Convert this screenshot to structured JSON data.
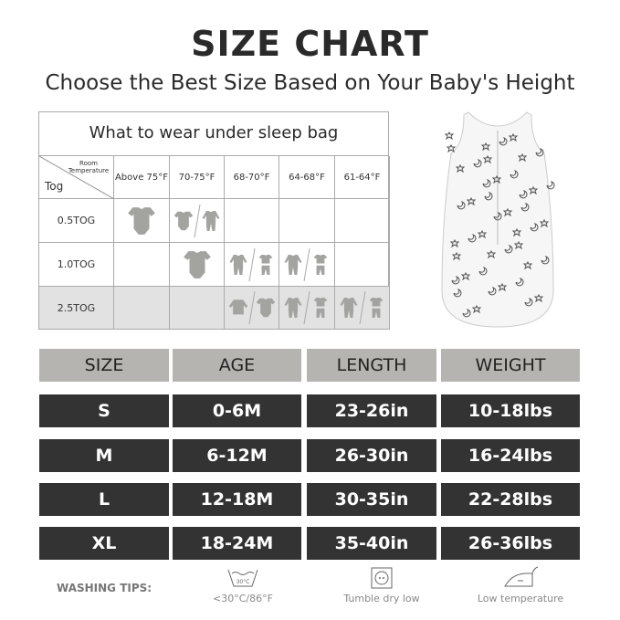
{
  "title": "SIZE CHART",
  "subtitle": "Choose the Best Size Based on Your Baby's Height",
  "tog_table": {
    "heading": "What to wear under sleep bag",
    "corner_top": "Room Temperature",
    "corner_bottom": "Tog",
    "temperatures": [
      "Above 75°F",
      "70-75°F",
      "68-70°F",
      "64-68°F",
      "61-64°F"
    ],
    "rows": [
      {
        "label": "0.5TOG",
        "cells": [
          [
            "onesie"
          ],
          [
            "onesie",
            "sleepsuit"
          ],
          [],
          [],
          []
        ]
      },
      {
        "label": "1.0TOG",
        "cells": [
          [],
          [
            "onesie"
          ],
          [
            "sleepsuit",
            "onesie-pants"
          ],
          [
            "sleepsuit",
            "onesie-pants"
          ],
          []
        ]
      },
      {
        "label": "2.5TOG",
        "cells": [
          [],
          [],
          [
            "jacket",
            "onesie"
          ],
          [
            "sleepsuit",
            "onesie-pants"
          ],
          [
            "sleepsuit",
            "onesie-pants"
          ]
        ]
      }
    ]
  },
  "size_table": {
    "headers": [
      "SIZE",
      "AGE",
      "LENGTH",
      "WEIGHT"
    ],
    "rows": [
      [
        "S",
        "0-6M",
        "23-26in",
        "10-18lbs"
      ],
      [
        "M",
        "6-12M",
        "26-30in",
        "16-24lbs"
      ],
      [
        "L",
        "12-18M",
        "30-35in",
        "22-28lbs"
      ],
      [
        "XL",
        "18-24M",
        "35-40in",
        "26-36lbs"
      ]
    ]
  },
  "washing": {
    "label": "WASHING TIPS:",
    "tips": [
      {
        "icon": "wash-30-icon",
        "symbol_text": "30°C",
        "text": "<30°C/86°F"
      },
      {
        "icon": "tumble-dry-icon",
        "text": "Tumble dry low"
      },
      {
        "icon": "iron-icon",
        "text": "Low temperature"
      }
    ]
  },
  "colors": {
    "header_gray": "#b5b4b0",
    "row_dark": "#333333",
    "icon_gray": "#a3a3a0",
    "shaded_row": "#e2e2e2"
  }
}
